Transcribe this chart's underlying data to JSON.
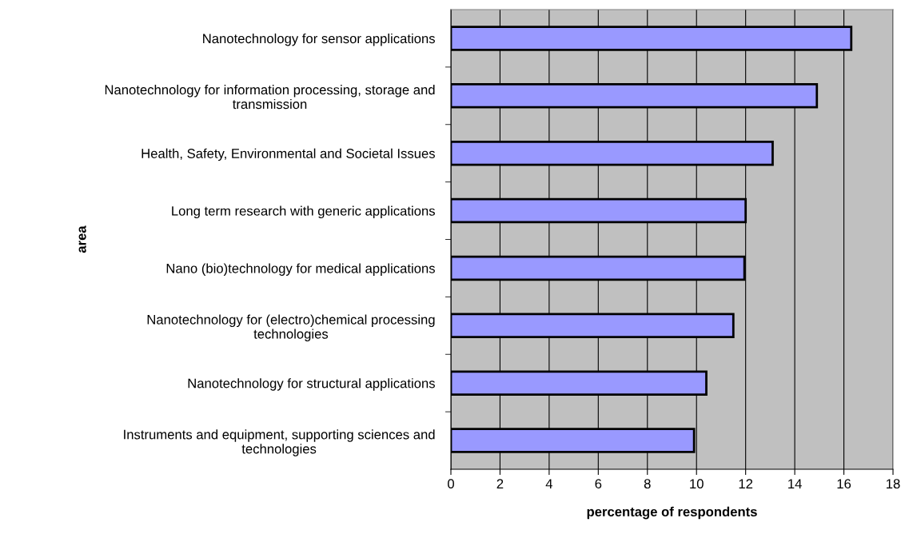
{
  "chart_data": {
    "type": "bar",
    "orientation": "horizontal",
    "xlabel": "percentage of respondents",
    "ylabel": "area",
    "categories": [
      "Nanotechnology for sensor applications",
      "Nanotechnology for information processing, storage and\ntransmission",
      "Health, Safety, Environmental and Societal Issues",
      "Long term research with generic applications",
      "Nano (bio)technology for medical applications",
      "Nanotechnology for (electro)chemical processing\ntechnologies",
      "Nanotechnology for structural applications",
      "Instruments and equipment, supporting sciences and\ntechnologies"
    ],
    "values": [
      16.3,
      14.9,
      13.1,
      12.0,
      11.95,
      11.5,
      10.4,
      9.9
    ],
    "color": "#9999ff",
    "xlim": [
      0,
      18
    ],
    "xticks": [
      0,
      2,
      4,
      6,
      8,
      10,
      12,
      14,
      16,
      18
    ],
    "grid": "x"
  }
}
